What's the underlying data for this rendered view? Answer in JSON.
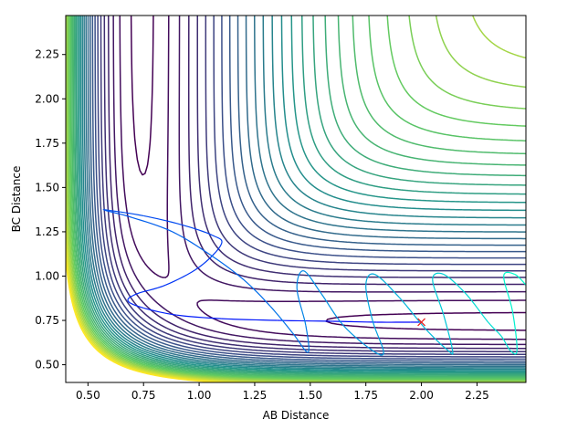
{
  "chart_data": {
    "type": "contour",
    "title": "",
    "xlabel": "AB Distance",
    "ylabel": "BC Distance",
    "xlim": [
      0.4,
      2.47
    ],
    "ylim": [
      0.4,
      2.47
    ],
    "xticks": [
      0.5,
      0.75,
      1.0,
      1.25,
      1.5,
      1.75,
      2.0,
      2.25
    ],
    "yticks": [
      0.5,
      0.75,
      1.0,
      1.25,
      1.5,
      1.75,
      2.0,
      2.25
    ],
    "xtick_labels": [
      "0.50",
      "0.75",
      "1.00",
      "1.25",
      "1.50",
      "1.75",
      "2.00",
      "2.25"
    ],
    "ytick_labels": [
      "0.50",
      "0.75",
      "1.00",
      "1.25",
      "1.50",
      "1.75",
      "2.00",
      "2.25"
    ],
    "grid": false,
    "contour_levels": 30,
    "colormap": [
      "#440154",
      "#3b528b",
      "#21918c",
      "#5ec962",
      "#fde725"
    ],
    "trajectory": {
      "color_start": "#0000ff",
      "color_end": "#00ffcc",
      "points": [
        [
          2.0,
          0.74
        ],
        [
          1.95,
          0.74
        ],
        [
          1.8,
          0.74
        ],
        [
          1.6,
          0.745
        ],
        [
          1.35,
          0.75
        ],
        [
          1.1,
          0.76
        ],
        [
          0.9,
          0.78
        ],
        [
          0.75,
          0.82
        ],
        [
          0.68,
          0.86
        ],
        [
          0.72,
          0.9
        ],
        [
          0.85,
          0.95
        ],
        [
          1.0,
          1.05
        ],
        [
          1.1,
          1.18
        ],
        [
          1.06,
          1.23
        ],
        [
          0.92,
          1.29
        ],
        [
          0.75,
          1.34
        ],
        [
          0.6,
          1.37
        ],
        [
          0.58,
          1.37
        ],
        [
          0.7,
          1.33
        ],
        [
          0.88,
          1.25
        ],
        [
          1.05,
          1.12
        ],
        [
          1.2,
          0.98
        ],
        [
          1.32,
          0.83
        ],
        [
          1.42,
          0.68
        ],
        [
          1.49,
          0.57
        ],
        [
          1.48,
          0.72
        ],
        [
          1.44,
          0.93
        ],
        [
          1.47,
          1.03
        ],
        [
          1.55,
          0.9
        ],
        [
          1.65,
          0.72
        ],
        [
          1.78,
          0.58
        ],
        [
          1.83,
          0.57
        ],
        [
          1.78,
          0.75
        ],
        [
          1.75,
          0.95
        ],
        [
          1.79,
          1.01
        ],
        [
          1.9,
          0.88
        ],
        [
          2.02,
          0.7
        ],
        [
          2.12,
          0.58
        ],
        [
          2.14,
          0.58
        ],
        [
          2.1,
          0.78
        ],
        [
          2.05,
          0.98
        ],
        [
          2.1,
          1.01
        ],
        [
          2.2,
          0.9
        ],
        [
          2.3,
          0.74
        ],
        [
          2.36,
          0.66
        ],
        [
          2.4,
          0.58
        ],
        [
          2.43,
          0.58
        ],
        [
          2.41,
          0.8
        ],
        [
          2.37,
          1.0
        ],
        [
          2.42,
          1.01
        ],
        [
          2.47,
          0.95
        ]
      ]
    },
    "marker": {
      "x": 2.0,
      "y": 0.74,
      "symbol": "x",
      "color": "#e8201e"
    }
  }
}
